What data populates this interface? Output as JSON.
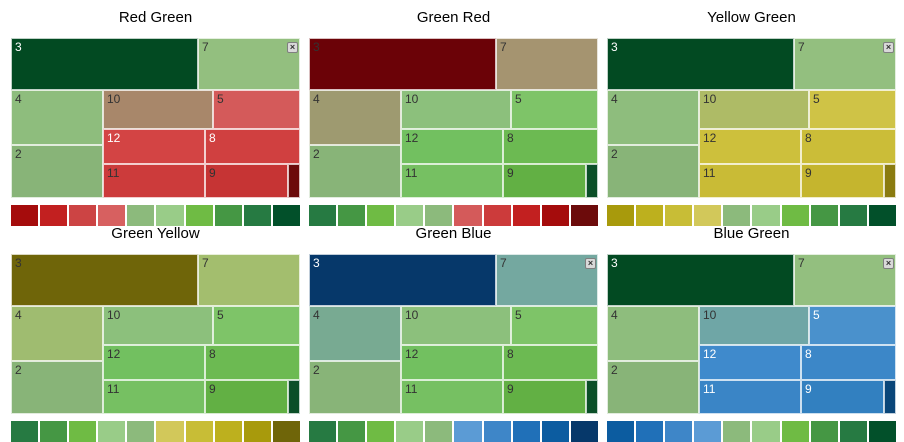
{
  "layout_cells": [
    {
      "id": "3"
    },
    {
      "id": "7"
    },
    {
      "id": "4"
    },
    {
      "id": "2"
    },
    {
      "id": "10"
    },
    {
      "id": "5"
    },
    {
      "id": "12"
    },
    {
      "id": "8"
    },
    {
      "id": "11"
    },
    {
      "id": "9"
    },
    {
      "id": "sm"
    }
  ],
  "panels": [
    {
      "title": "Red Green",
      "has_close": true,
      "colors": {
        "3": "#024a22",
        "7": "#93bf7f",
        "4": "#8ebd7d",
        "2": "#88b478",
        "10": "#a8876a",
        "5": "#d45a5a",
        "12": "#d34444",
        "8": "#d04040",
        "11": "#cc3b3b",
        "9": "#c63434",
        "sm": "#6c0b0b"
      },
      "label_colors": {
        "3": "#ffffff",
        "7": "#333333",
        "4": "#333333",
        "2": "#333333",
        "10": "#333333",
        "5": "#333333",
        "12": "#ffffff",
        "8": "#ffffff",
        "11": "#333333",
        "9": "#333333"
      },
      "legend": [
        "#a50c0c",
        "#c22020",
        "#cc4444",
        "#d76060",
        "#8cba7c",
        "#99cc88",
        "#6fbb44",
        "#459744",
        "#267a42",
        "#02502a"
      ]
    },
    {
      "title": "Green Red",
      "has_close": false,
      "colors": {
        "3": "#6b0207",
        "7": "#a59470",
        "4": "#9e9a70",
        "2": "#88b478",
        "10": "#8cc07c",
        "5": "#7ec468",
        "12": "#72c060",
        "8": "#6cba52",
        "11": "#76c062",
        "9": "#62b044",
        "sm": "#0b4f28"
      },
      "label_colors": {
        "3": "#333333",
        "7": "#333333",
        "4": "#333333",
        "2": "#333333",
        "10": "#333333",
        "5": "#333333",
        "12": "#333333",
        "8": "#333333",
        "11": "#333333",
        "9": "#333333"
      },
      "legend": [
        "#267a42",
        "#459744",
        "#6fbb44",
        "#99cc88",
        "#8cba7c",
        "#d45a5a",
        "#cc3b3b",
        "#c22020",
        "#a50c0c",
        "#6c0b0b"
      ]
    },
    {
      "title": "Yellow Green",
      "has_close": true,
      "colors": {
        "3": "#024a22",
        "7": "#93bf7f",
        "4": "#8ebd7d",
        "2": "#88b478",
        "10": "#aebb66",
        "5": "#cfc346",
        "12": "#cdc03c",
        "8": "#cbbd38",
        "11": "#c9bb36",
        "9": "#c5b52e",
        "sm": "#8a7b10"
      },
      "label_colors": {
        "3": "#ffffff",
        "7": "#333333",
        "4": "#333333",
        "2": "#333333",
        "10": "#333333",
        "5": "#333333",
        "12": "#333333",
        "8": "#333333",
        "11": "#333333",
        "9": "#333333"
      },
      "legend": [
        "#a89a0c",
        "#bdb01e",
        "#c8bd36",
        "#d2c85a",
        "#8cba7c",
        "#99cc88",
        "#6fbb44",
        "#459744",
        "#267a42",
        "#02502a"
      ]
    },
    {
      "title": "Green Yellow",
      "has_close": false,
      "colors": {
        "3": "#6f6509",
        "7": "#a3be6e",
        "4": "#9fbc70",
        "2": "#88b478",
        "10": "#8cc07c",
        "5": "#7ec468",
        "12": "#72c060",
        "8": "#6cba52",
        "11": "#76c062",
        "9": "#62b044",
        "sm": "#0b4f28"
      },
      "label_colors": {
        "3": "#333333",
        "7": "#333333",
        "4": "#333333",
        "2": "#333333",
        "10": "#333333",
        "5": "#333333",
        "12": "#333333",
        "8": "#333333",
        "11": "#333333",
        "9": "#333333"
      },
      "legend": [
        "#267a42",
        "#459744",
        "#6fbb44",
        "#99cc88",
        "#8cba7c",
        "#d2c85a",
        "#c8bd36",
        "#bdb01e",
        "#a89a0c",
        "#6f6509"
      ]
    },
    {
      "title": "Green Blue",
      "has_close": true,
      "colors": {
        "3": "#06386a",
        "7": "#74a8a0",
        "4": "#78aa92",
        "2": "#88b478",
        "10": "#8cc07c",
        "5": "#7ec468",
        "12": "#72c060",
        "8": "#6cba52",
        "11": "#76c062",
        "9": "#62b044",
        "sm": "#0b4f28"
      },
      "label_colors": {
        "3": "#ffffff",
        "7": "#333333",
        "4": "#333333",
        "2": "#333333",
        "10": "#333333",
        "5": "#333333",
        "12": "#333333",
        "8": "#333333",
        "11": "#333333",
        "9": "#333333"
      },
      "legend": [
        "#267a42",
        "#459744",
        "#6fbb44",
        "#99cc88",
        "#8cba7c",
        "#5b9bd5",
        "#3e86c8",
        "#2070b8",
        "#0c5ca0",
        "#06386a"
      ]
    },
    {
      "title": "Blue Green",
      "has_close": true,
      "colors": {
        "3": "#024a22",
        "7": "#93bf7f",
        "4": "#8ebd7d",
        "2": "#88b478",
        "10": "#6fa6a6",
        "5": "#4a91cc",
        "12": "#3f8acc",
        "8": "#3c87c8",
        "11": "#3a85c6",
        "9": "#3280c0",
        "sm": "#0a4679"
      },
      "label_colors": {
        "3": "#ffffff",
        "7": "#333333",
        "4": "#333333",
        "2": "#333333",
        "10": "#333333",
        "5": "#ffffff",
        "12": "#ffffff",
        "8": "#ffffff",
        "11": "#ffffff",
        "9": "#ffffff"
      },
      "legend": [
        "#0c5ca0",
        "#2070b8",
        "#3e86c8",
        "#5b9bd5",
        "#8cba7c",
        "#99cc88",
        "#6fbb44",
        "#459744",
        "#267a42",
        "#02502a"
      ]
    }
  ]
}
